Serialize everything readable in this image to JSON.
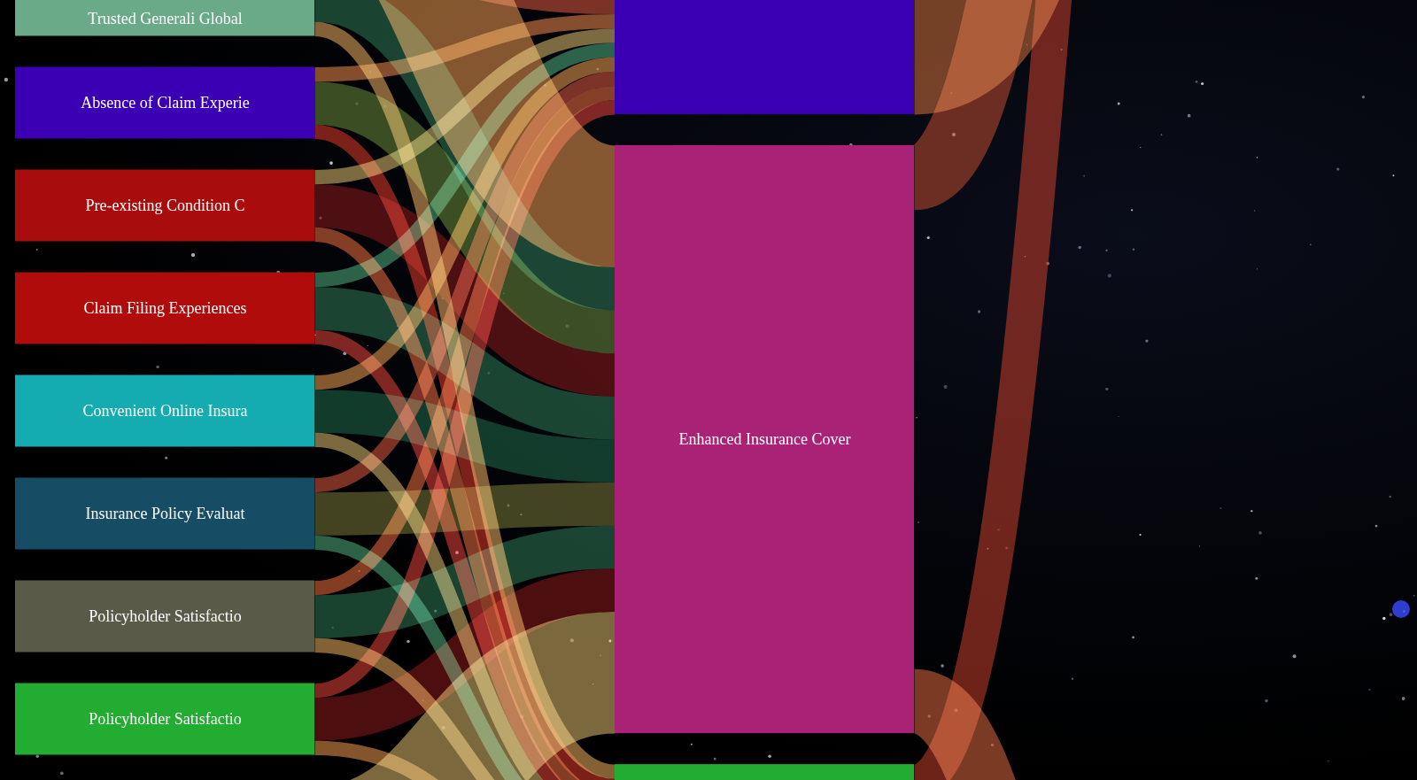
{
  "chart_data": {
    "type": "sankey",
    "nodes": [
      {
        "name": null,
        "color": "#c8462e"
      },
      {
        "name": "Trusted Generali Global",
        "color": "#6aaa88"
      },
      {
        "name": "Absence of Claim Experie",
        "color": "#3c00b4"
      },
      {
        "name": "Pre-existing Condition C",
        "color": "#a80c0c"
      },
      {
        "name": "Claim Filing Experiences",
        "color": "#b00c0c"
      },
      {
        "name": "Convenient Online Insura",
        "color": "#14acb0"
      },
      {
        "name": "Insurance Policy Evaluat",
        "color": "#164c64"
      },
      {
        "name": "Policyholder Satisfactio",
        "color": "#5a5a48"
      },
      {
        "name": "Policyholder Satisfactio",
        "color": "#22ac32"
      },
      {
        "name": null,
        "color": "#e0903c"
      },
      {
        "name": null,
        "color": "#3c00b4"
      },
      {
        "name": "Enhanced Insurance Cover",
        "color": "#aa2276"
      },
      {
        "name": null,
        "color": "#22ac32"
      },
      {
        "name": null,
        "color": "#c0392b"
      },
      {
        "name": null,
        "color": "#d06040"
      }
    ],
    "links": [
      {
        "source": 0,
        "target": 10,
        "value": 13,
        "color": "#e8433a"
      },
      {
        "source": 0,
        "target": 11,
        "value": 17,
        "color": "#f09a50"
      },
      {
        "source": 1,
        "target": 10,
        "value": 2,
        "color": "#e05a40"
      },
      {
        "source": 1,
        "target": 11,
        "value": 6,
        "color": "#2f7a55"
      },
      {
        "source": 1,
        "target": 12,
        "value": 2,
        "color": "#f0b060"
      },
      {
        "source": 2,
        "target": 10,
        "value": 2,
        "color": "#f08a4a"
      },
      {
        "source": 2,
        "target": 11,
        "value": 6,
        "color": "#6a8a3a"
      },
      {
        "source": 2,
        "target": 12,
        "value": 2,
        "color": "#e03a2a"
      },
      {
        "source": 3,
        "target": 10,
        "value": 2,
        "color": "#e0c070"
      },
      {
        "source": 3,
        "target": 11,
        "value": 6,
        "color": "#8a1a1a"
      },
      {
        "source": 3,
        "target": 12,
        "value": 2,
        "color": "#f07040"
      },
      {
        "source": 4,
        "target": 10,
        "value": 2,
        "color": "#50b080"
      },
      {
        "source": 4,
        "target": 11,
        "value": 6,
        "color": "#2f7a55"
      },
      {
        "source": 4,
        "target": 12,
        "value": 2,
        "color": "#e8433a"
      },
      {
        "source": 5,
        "target": 10,
        "value": 2,
        "color": "#f0a050"
      },
      {
        "source": 5,
        "target": 11,
        "value": 6,
        "color": "#1f6a4a"
      },
      {
        "source": 5,
        "target": 12,
        "value": 2,
        "color": "#e0c070"
      },
      {
        "source": 6,
        "target": 10,
        "value": 2,
        "color": "#e05a40"
      },
      {
        "source": 6,
        "target": 11,
        "value": 6,
        "color": "#7a7a3a"
      },
      {
        "source": 6,
        "target": 12,
        "value": 2,
        "color": "#50b080"
      },
      {
        "source": 7,
        "target": 10,
        "value": 2,
        "color": "#f07040"
      },
      {
        "source": 7,
        "target": 11,
        "value": 6,
        "color": "#2f7a55"
      },
      {
        "source": 7,
        "target": 12,
        "value": 2,
        "color": "#f0b060"
      },
      {
        "source": 8,
        "target": 10,
        "value": 2,
        "color": "#e8433a"
      },
      {
        "source": 8,
        "target": 11,
        "value": 6,
        "color": "#8a1a1a"
      },
      {
        "source": 8,
        "target": 12,
        "value": 2,
        "color": "#f09a50"
      },
      {
        "source": 9,
        "target": 11,
        "value": 17,
        "color": "#e0c070"
      },
      {
        "source": 9,
        "target": 12,
        "value": 13,
        "color": "#f07040"
      },
      {
        "source": 10,
        "target": 13,
        "value": 29,
        "color": "#d0703a"
      },
      {
        "source": 11,
        "target": 13,
        "value": 9,
        "color": "#c04a30"
      },
      {
        "source": 11,
        "target": 14,
        "value": 9,
        "color": "#e06a40"
      },
      {
        "source": 12,
        "target": 13,
        "value": 5,
        "color": "#c8402c"
      },
      {
        "source": 12,
        "target": 14,
        "value": 24,
        "color": "#e07848"
      }
    ]
  }
}
